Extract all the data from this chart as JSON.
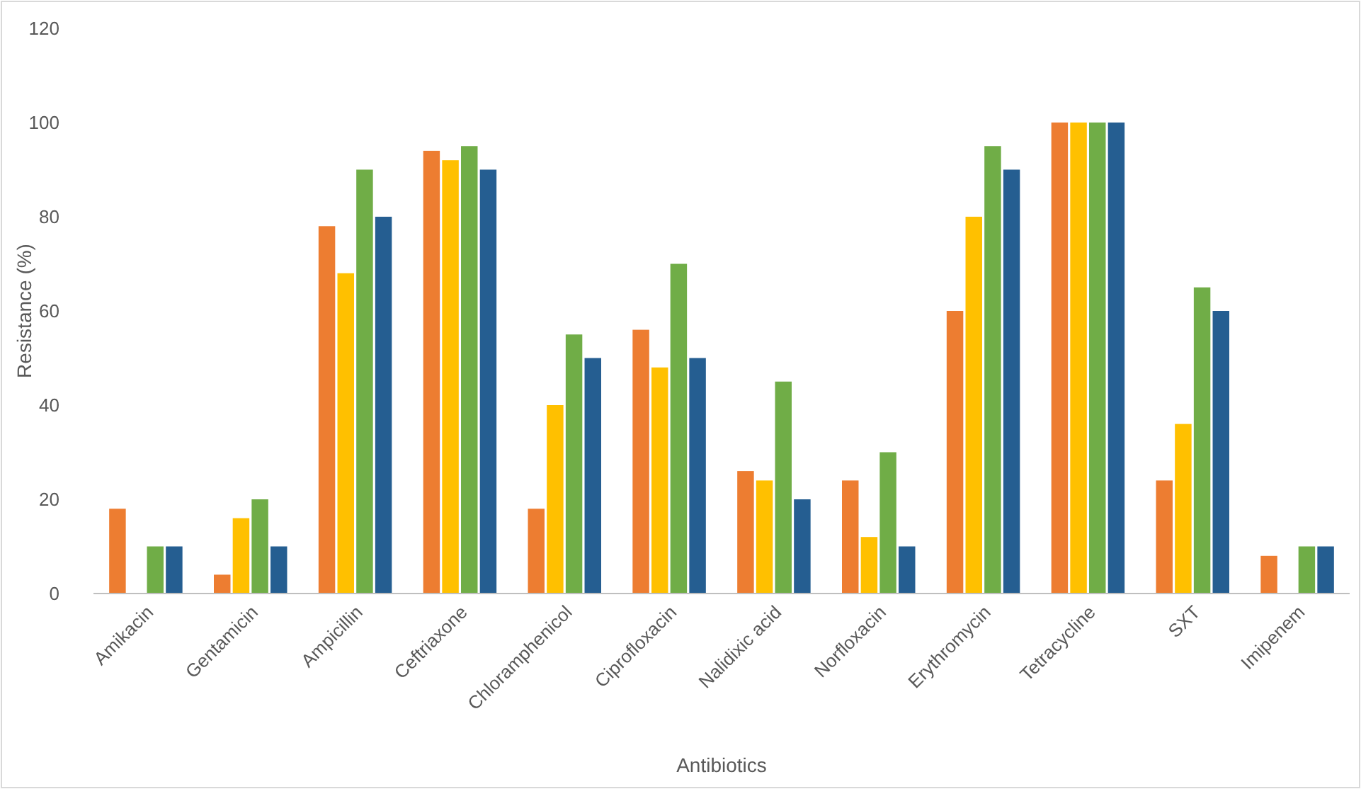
{
  "chart_data": {
    "type": "bar",
    "xlabel": "Antibiotics",
    "ylabel": "Resistance (%)",
    "categories": [
      "Amikacin",
      "Gentamicin",
      "Ampicillin",
      "Ceftriaxone",
      "Chloramphenicol",
      "Ciprofloxacin",
      "Nalidixic acid",
      "Norfloxacin",
      "Erythromycin",
      "Tetracycline",
      "SXT",
      "Imipenem"
    ],
    "series": [
      {
        "color": "#ed7d31",
        "values": [
          18,
          4,
          78,
          94,
          18,
          56,
          26,
          24,
          60,
          100,
          24,
          8
        ]
      },
      {
        "color": "#ffc000",
        "values": [
          0,
          16,
          68,
          92,
          40,
          48,
          24,
          12,
          80,
          100,
          36,
          0
        ]
      },
      {
        "color": "#70ad47",
        "values": [
          10,
          20,
          90,
          95,
          55,
          70,
          45,
          30,
          95,
          100,
          65,
          10
        ]
      },
      {
        "color": "#255e91",
        "values": [
          10,
          10,
          80,
          90,
          50,
          50,
          20,
          10,
          90,
          100,
          60,
          10
        ]
      }
    ],
    "ylim": [
      0,
      120
    ],
    "yticks": [
      0,
      20,
      40,
      60,
      80,
      100,
      120
    ],
    "grid": false
  }
}
